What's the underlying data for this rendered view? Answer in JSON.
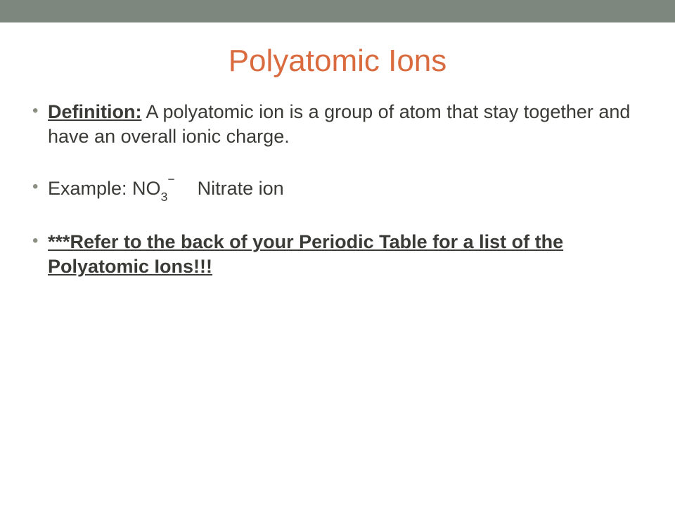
{
  "colors": {
    "top_bar": "#7d877d",
    "title": "#d96b3e",
    "body_text": "#3a3a36",
    "bullet": "#8b8f82",
    "background": "#ffffff"
  },
  "typography": {
    "title_fontsize": 44,
    "body_fontsize": 27,
    "font_family": "Arial"
  },
  "title": "Polyatomic Ions",
  "bullets": {
    "item1": {
      "label": "Definition:",
      "text": " A polyatomic ion is a group of atom that stay together and have an overall ionic charge."
    },
    "item2": {
      "prefix": "Example: NO",
      "subscript": "3",
      "superscript": "−",
      "name": "Nitrate ion"
    },
    "item3": {
      "text": "***Refer to the back of your Periodic Table for a list of the Polyatomic Ions!!!"
    }
  }
}
